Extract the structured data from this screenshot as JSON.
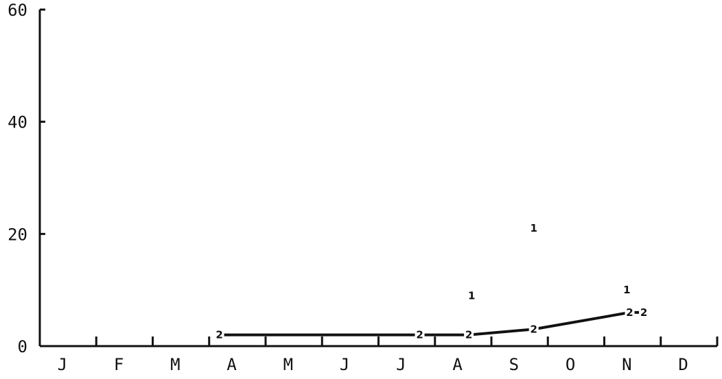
{
  "chart_data": {
    "type": "line",
    "title": "",
    "xlabel": "",
    "ylabel": "",
    "x_tick_labels": [
      "J",
      "F",
      "M",
      "A",
      "M",
      "J",
      "J",
      "A",
      "S",
      "O",
      "N",
      "D"
    ],
    "y_ticks": [
      0,
      20,
      40,
      60
    ],
    "ylim": [
      0,
      60
    ],
    "xlim": [
      0,
      12
    ],
    "grid": false,
    "series": [
      {
        "name": "1",
        "marker": "1",
        "connected": false,
        "points": [
          {
            "x": 7.65,
            "y": 9
          },
          {
            "x": 8.75,
            "y": 21
          },
          {
            "x": 10.4,
            "y": 10
          }
        ]
      },
      {
        "name": "2",
        "marker": "2",
        "connected": true,
        "points": [
          {
            "x": 3.18,
            "y": 2
          },
          {
            "x": 6.73,
            "y": 2
          },
          {
            "x": 7.6,
            "y": 2
          },
          {
            "x": 8.75,
            "y": 3
          },
          {
            "x": 10.45,
            "y": 6
          },
          {
            "x": 10.7,
            "y": 6
          }
        ]
      }
    ]
  }
}
